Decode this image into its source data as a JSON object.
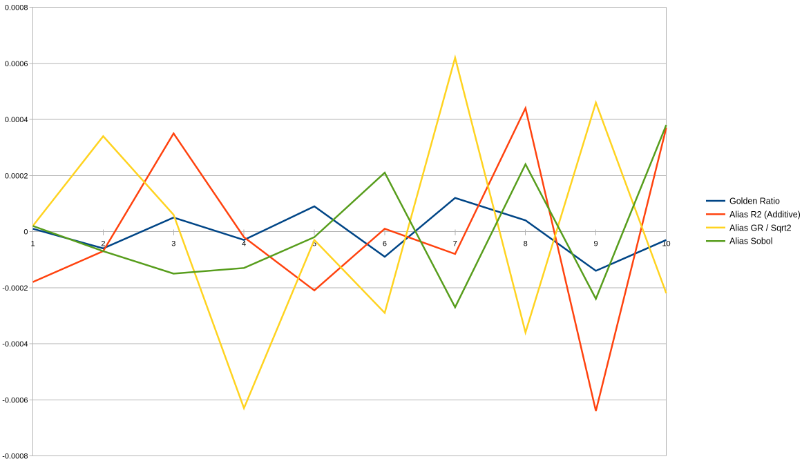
{
  "chart_data": {
    "type": "line",
    "title": "",
    "xlabel": "",
    "ylabel": "",
    "x": [
      1,
      2,
      3,
      4,
      5,
      6,
      7,
      8,
      9,
      10
    ],
    "x_tick_labels": [
      "1",
      "2",
      "3",
      "4",
      "5",
      "6",
      "7",
      "8",
      "9",
      "10"
    ],
    "y_tick_labels": [
      "0.0008",
      "0.0006",
      "0.0004",
      "0.0002",
      "0",
      "-0.0002",
      "-0.0004",
      "-0.0006",
      "-0.0008"
    ],
    "ylim": [
      -0.0008,
      0.0008
    ],
    "ytick_step": 0.0002,
    "grid": true,
    "legend_position": "right",
    "colors": {
      "gridline": "#b3b3b3",
      "axis": "#b3b3b3",
      "background": "#ffffff",
      "text": "#000000"
    },
    "series": [
      {
        "name": "Golden Ratio",
        "color": "#004586",
        "values": [
          1e-05,
          -6e-05,
          5e-05,
          -3e-05,
          9e-05,
          -9e-05,
          0.00012,
          4e-05,
          -0.00014,
          -3e-05
        ]
      },
      {
        "name": "Alias R2 (Additive)",
        "color": "#FF420E",
        "values": [
          -0.00018,
          -7e-05,
          0.00035,
          -2e-05,
          -0.00021,
          1e-05,
          -8e-05,
          0.00044,
          -0.00064,
          0.00037
        ]
      },
      {
        "name": "Alias GR / Sqrt2",
        "color": "#FFD320",
        "values": [
          2e-05,
          0.00034,
          6e-05,
          -0.00063,
          -3e-05,
          -0.00029,
          0.00062,
          -0.00036,
          0.00046,
          -0.00022
        ]
      },
      {
        "name": "Alias Sobol",
        "color": "#579D1C",
        "values": [
          2e-05,
          -7e-05,
          -0.00015,
          -0.00013,
          -2e-05,
          0.00021,
          -0.00027,
          0.00024,
          -0.00024,
          0.00038
        ]
      }
    ]
  }
}
